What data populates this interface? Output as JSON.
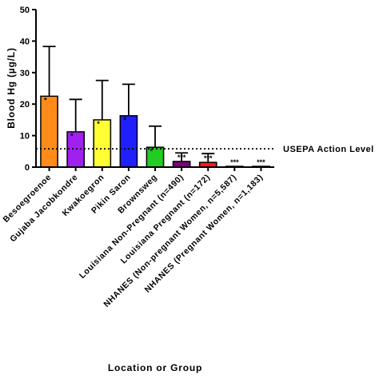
{
  "chart_data": {
    "type": "bar",
    "xlabel": "Location or Group",
    "ylabel": "Blood Hg (µg/L)",
    "ylim": [
      0,
      50
    ],
    "yticks": [
      0,
      10,
      20,
      30,
      40,
      50
    ],
    "grid": false,
    "categories": [
      "Besoegroenoe",
      "Pikin Saron",
      "Brownsweg",
      "Kwakoegron",
      "Gujaba Jacobkondre",
      "Louisiana Non-Pregnant (n=490)",
      "Louisiana Pregnant (n=172)",
      "NHANES (Non-pregnant Women, n=5,587)",
      "NHANES (Pregnant Women, n=1,183)"
    ],
    "display_labels": [
      "Besoegroenoe",
      "Gujaba Jacobkondre",
      "Kwakoegron",
      "Pikin Saron",
      "Brownsweg",
      "Louisiana Non-Pregnant (n=490)",
      "Louisiana Pregnant (n=172)",
      "NHANES (Non-pregnant Women, n=5,587)",
      "NHANES (Pregnant Women, n=1,183)"
    ],
    "values": [
      22.5,
      11.2,
      15.0,
      16.3,
      6.3,
      1.8,
      1.5,
      0.25,
      0.25
    ],
    "error_upper": [
      38.3,
      21.5,
      27.5,
      26.3,
      13.0,
      4.5,
      4.3,
      null,
      null
    ],
    "significance": [
      "*",
      "*",
      "*",
      "*",
      "*",
      "***",
      "***",
      "***",
      "***"
    ],
    "colors": [
      "#FF8C1A",
      "#A020F0",
      "#FFFF33",
      "#1F1FFF",
      "#22CC22",
      "#800080",
      "#FF1A1A",
      "#1A1AFF",
      "#33CC33"
    ],
    "reference_line": {
      "value": 5.8,
      "label": "USEPA Action Level"
    }
  }
}
